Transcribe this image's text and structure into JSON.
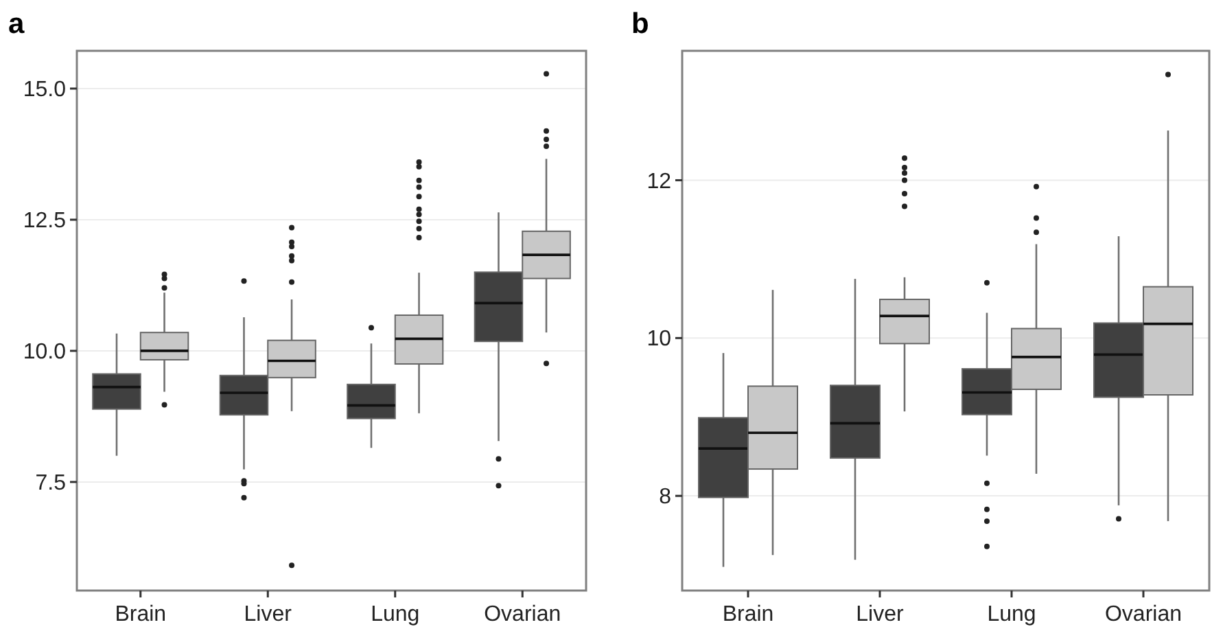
{
  "chart_data": [
    {
      "type": "box",
      "title": "a",
      "categories": [
        "Brain",
        "Liver",
        "Lung",
        "Ovarian"
      ],
      "ylim": [
        5.43,
        15.72
      ],
      "yticks": [
        {
          "value": 7.5,
          "label": "7.5"
        },
        {
          "value": 10,
          "label": "10.0"
        },
        {
          "value": 12.5,
          "label": "12.5"
        },
        {
          "value": 15,
          "label": "15.0"
        }
      ],
      "grid": "y",
      "series": [
        {
          "color": "#404040",
          "boxes": [
            {
              "low": 8.0,
              "q1": 8.89,
              "median": 9.31,
              "q3": 9.56,
              "high": 10.33
            },
            {
              "low": 7.74,
              "q1": 8.78,
              "median": 9.2,
              "q3": 9.53,
              "high": 10.64,
              "outliers": [
                11.33,
                7.52,
                7.47,
                7.2
              ]
            },
            {
              "low": 8.15,
              "q1": 8.71,
              "median": 8.96,
              "q3": 9.36,
              "high": 10.14,
              "outliers": [
                10.44
              ]
            },
            {
              "low": 8.28,
              "q1": 10.18,
              "median": 10.91,
              "q3": 11.5,
              "high": 12.64,
              "outliers": [
                7.94,
                7.43
              ]
            }
          ]
        },
        {
          "color": "#c8c8c8",
          "boxes": [
            {
              "low": 9.22,
              "q1": 9.83,
              "median": 10.0,
              "q3": 10.35,
              "high": 11.11,
              "outliers": [
                11.46,
                11.38,
                11.2,
                8.97
              ]
            },
            {
              "low": 8.85,
              "q1": 9.49,
              "median": 9.81,
              "q3": 10.2,
              "high": 10.98,
              "outliers": [
                11.31,
                11.72,
                11.81,
                11.99,
                12.07,
                12.35,
                5.91
              ]
            },
            {
              "low": 8.81,
              "q1": 9.75,
              "median": 10.23,
              "q3": 10.68,
              "high": 11.49,
              "outliers": [
                12.16,
                12.33,
                12.47,
                12.6,
                12.7,
                12.94,
                13.12,
                13.25,
                13.51,
                13.6
              ]
            },
            {
              "low": 10.35,
              "q1": 11.38,
              "median": 11.83,
              "q3": 12.28,
              "high": 13.66,
              "outliers": [
                13.9,
                14.03,
                14.19,
                15.28,
                9.76
              ]
            }
          ]
        }
      ]
    },
    {
      "type": "box",
      "title": "b",
      "categories": [
        "Brain",
        "Liver",
        "Lung",
        "Ovarian"
      ],
      "ylim": [
        6.8,
        13.64
      ],
      "yticks": [
        8,
        10,
        12
      ],
      "grid": "y",
      "series": [
        {
          "color": "#404040",
          "boxes": [
            {
              "low": 7.1,
              "q1": 7.98,
              "median": 8.6,
              "q3": 8.99,
              "high": 9.81
            },
            {
              "low": 7.19,
              "q1": 8.48,
              "median": 8.92,
              "q3": 9.4,
              "high": 10.75
            },
            {
              "low": 8.51,
              "q1": 9.03,
              "median": 9.31,
              "q3": 9.61,
              "high": 10.32,
              "outliers": [
                10.7,
                8.16,
                7.83,
                7.68,
                7.36
              ]
            },
            {
              "low": 7.88,
              "q1": 9.25,
              "median": 9.79,
              "q3": 10.19,
              "high": 11.29,
              "outliers": [
                7.71
              ]
            }
          ]
        },
        {
          "color": "#c8c8c8",
          "boxes": [
            {
              "low": 7.25,
              "q1": 8.34,
              "median": 8.8,
              "q3": 9.39,
              "high": 10.61
            },
            {
              "low": 9.07,
              "q1": 9.93,
              "median": 10.28,
              "q3": 10.49,
              "high": 10.77,
              "outliers": [
                12.28,
                12.16,
                12.09,
                12.0,
                11.83,
                11.67
              ]
            },
            {
              "low": 8.28,
              "q1": 9.35,
              "median": 9.76,
              "q3": 10.12,
              "high": 11.19,
              "outliers": [
                11.92,
                11.52,
                11.34
              ]
            },
            {
              "low": 7.68,
              "q1": 9.28,
              "median": 10.18,
              "q3": 10.65,
              "high": 12.63,
              "outliers": [
                13.34
              ]
            }
          ]
        }
      ]
    }
  ]
}
